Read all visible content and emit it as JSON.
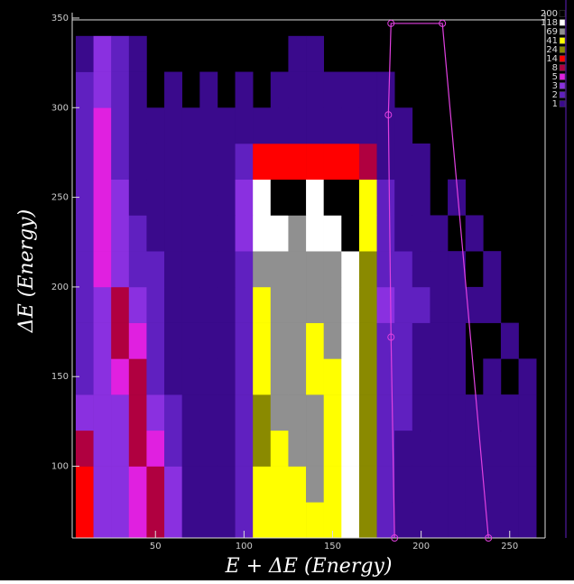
{
  "chart_data": {
    "type": "heatmap",
    "x_label": "E + ΔE (Energy)",
    "y_label": "ΔE (Energy)",
    "xlim": [
      3,
      270
    ],
    "ylim": [
      60,
      353
    ],
    "xticks": [
      50,
      100,
      150,
      200,
      250
    ],
    "yticks": [
      100,
      150,
      200,
      250,
      300,
      350
    ],
    "x_edges": [
      5,
      15,
      25,
      35,
      45,
      55,
      65,
      75,
      85,
      95,
      105,
      115,
      125,
      135,
      145,
      155,
      165,
      175,
      185,
      195,
      205,
      215,
      225,
      235,
      245,
      255,
      265
    ],
    "y_edges": [
      60,
      80,
      100,
      120,
      140,
      160,
      180,
      200,
      220,
      240,
      260,
      280,
      300,
      320,
      340
    ],
    "z": [
      [
        14,
        3,
        3,
        5,
        8,
        3,
        1,
        1,
        1,
        2,
        41,
        41,
        41,
        41,
        41,
        118,
        24,
        2,
        1,
        1,
        1,
        1,
        1,
        1,
        1,
        1
      ],
      [
        14,
        3,
        3,
        5,
        8,
        3,
        1,
        1,
        1,
        2,
        41,
        41,
        41,
        69,
        41,
        118,
        24,
        2,
        1,
        1,
        1,
        1,
        1,
        1,
        1,
        1
      ],
      [
        8,
        3,
        3,
        8,
        5,
        2,
        1,
        1,
        1,
        2,
        24,
        41,
        69,
        69,
        41,
        118,
        24,
        2,
        1,
        1,
        1,
        1,
        1,
        1,
        1,
        1
      ],
      [
        3,
        3,
        3,
        8,
        3,
        2,
        1,
        1,
        1,
        2,
        24,
        69,
        69,
        69,
        41,
        118,
        24,
        2,
        2,
        1,
        1,
        1,
        1,
        1,
        1,
        1
      ],
      [
        2,
        3,
        5,
        8,
        2,
        1,
        1,
        1,
        1,
        2,
        41,
        69,
        69,
        41,
        41,
        118,
        24,
        2,
        2,
        1,
        1,
        1,
        0,
        1,
        0,
        1
      ],
      [
        2,
        3,
        8,
        5,
        2,
        1,
        1,
        1,
        1,
        2,
        41,
        69,
        69,
        41,
        69,
        118,
        24,
        2,
        2,
        1,
        1,
        1,
        0,
        0,
        1,
        0
      ],
      [
        2,
        3,
        8,
        3,
        2,
        1,
        1,
        1,
        1,
        2,
        41,
        69,
        69,
        69,
        69,
        118,
        24,
        3,
        2,
        2,
        1,
        1,
        1,
        1,
        0,
        0
      ],
      [
        2,
        5,
        3,
        2,
        2,
        1,
        1,
        1,
        1,
        2,
        69,
        69,
        69,
        69,
        69,
        118,
        24,
        2,
        2,
        1,
        1,
        1,
        0,
        1,
        0,
        0
      ],
      [
        2,
        5,
        3,
        2,
        1,
        1,
        1,
        1,
        1,
        3,
        118,
        118,
        69,
        118,
        118,
        200,
        41,
        2,
        1,
        1,
        1,
        0,
        1,
        0,
        0,
        0
      ],
      [
        2,
        5,
        3,
        1,
        1,
        1,
        1,
        1,
        1,
        3,
        118,
        200,
        200,
        118,
        200,
        200,
        41,
        2,
        1,
        1,
        0,
        1,
        0,
        0,
        0,
        0
      ],
      [
        2,
        5,
        2,
        1,
        1,
        1,
        1,
        1,
        1,
        2,
        14,
        14,
        14,
        14,
        14,
        14,
        8,
        1,
        1,
        1,
        0,
        0,
        0,
        0,
        0,
        0
      ],
      [
        2,
        5,
        2,
        1,
        1,
        1,
        1,
        1,
        1,
        1,
        1,
        1,
        1,
        1,
        1,
        1,
        1,
        1,
        1,
        0,
        0,
        0,
        0,
        0,
        0,
        0
      ],
      [
        2,
        3,
        2,
        1,
        0,
        1,
        0,
        1,
        0,
        1,
        0,
        1,
        1,
        1,
        1,
        1,
        1,
        1,
        0,
        0,
        0,
        0,
        0,
        0,
        0,
        0
      ],
      [
        1,
        3,
        2,
        1,
        0,
        0,
        0,
        0,
        0,
        0,
        0,
        0,
        1,
        1,
        0,
        0,
        0,
        0,
        0,
        0,
        0,
        0,
        0,
        0,
        0,
        0
      ]
    ],
    "levels": [
      200,
      118,
      69,
      41,
      24,
      14,
      8,
      5,
      3,
      2,
      1
    ],
    "level_colors": [
      "#000000",
      "#ffffff",
      "#909090",
      "#ffff00",
      "#8a8a00",
      "#ff0000",
      "#b00040",
      "#e020e0",
      "#8a30e0",
      "#6020c0",
      "#3a0a8c"
    ],
    "cut": {
      "x": [
        185,
        183,
        181.5,
        183,
        212,
        238
      ],
      "y": [
        60,
        172,
        296,
        347,
        347,
        60
      ],
      "color": "#e040e0"
    }
  }
}
